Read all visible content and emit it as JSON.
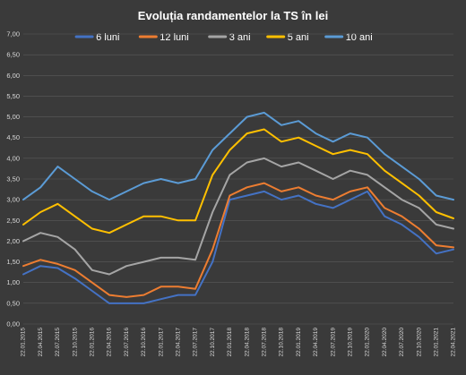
{
  "chart_data": {
    "type": "line",
    "title": "Evoluția randamentelor la TS în lei",
    "xlabel": "",
    "ylabel": "",
    "ylim": [
      0,
      7
    ],
    "yticks": [
      "0,00",
      "0,50",
      "1,00",
      "1,50",
      "2,00",
      "2,50",
      "3,00",
      "3,50",
      "4,00",
      "4,50",
      "5,00",
      "5,50",
      "6,00",
      "6,50",
      "7,00"
    ],
    "legend_position": "top",
    "grid": true,
    "x": [
      "22.01.2015",
      "22.04.2015",
      "22.07.2015",
      "22.10.2015",
      "22.01.2016",
      "22.04.2016",
      "22.07.2016",
      "22.10.2016",
      "22.01.2017",
      "22.04.2017",
      "22.07.2017",
      "22.10.2017",
      "22.01.2018",
      "22.04.2018",
      "22.07.2018",
      "22.10.2018",
      "22.01.2019",
      "22.04.2019",
      "22.07.2019",
      "22.10.2019",
      "22.01.2020",
      "22.04.2020",
      "22.07.2020",
      "22.10.2020",
      "22.01.2021",
      "22.04.2021"
    ],
    "series": [
      {
        "name": "6 luni",
        "color": "#4472c4",
        "values": [
          1.2,
          1.4,
          1.35,
          1.1,
          0.8,
          0.5,
          0.5,
          0.5,
          0.6,
          0.7,
          0.7,
          1.5,
          3.0,
          3.1,
          3.2,
          3.0,
          3.1,
          2.9,
          2.8,
          3.0,
          3.2,
          2.6,
          2.4,
          2.1,
          1.7,
          1.8
        ]
      },
      {
        "name": "12 luni",
        "color": "#ed7d31",
        "values": [
          1.4,
          1.55,
          1.45,
          1.3,
          1.0,
          0.7,
          0.65,
          0.7,
          0.9,
          0.9,
          0.85,
          1.8,
          3.1,
          3.3,
          3.4,
          3.2,
          3.3,
          3.1,
          3.0,
          3.2,
          3.3,
          2.8,
          2.6,
          2.3,
          1.9,
          1.85
        ]
      },
      {
        "name": "3 ani",
        "color": "#a5a5a5",
        "values": [
          2.0,
          2.2,
          2.1,
          1.8,
          1.3,
          1.2,
          1.4,
          1.5,
          1.6,
          1.6,
          1.55,
          2.7,
          3.6,
          3.9,
          4.0,
          3.8,
          3.9,
          3.7,
          3.5,
          3.7,
          3.6,
          3.3,
          3.0,
          2.8,
          2.4,
          2.3
        ]
      },
      {
        "name": "5 ani",
        "color": "#ffc000",
        "values": [
          2.4,
          2.7,
          2.9,
          2.6,
          2.3,
          2.2,
          2.4,
          2.6,
          2.6,
          2.5,
          2.5,
          3.6,
          4.2,
          4.6,
          4.7,
          4.4,
          4.5,
          4.3,
          4.1,
          4.2,
          4.1,
          3.7,
          3.4,
          3.1,
          2.7,
          2.55
        ]
      },
      {
        "name": "10 ani",
        "color": "#5b9bd5",
        "values": [
          3.0,
          3.3,
          3.8,
          3.5,
          3.2,
          3.0,
          3.2,
          3.4,
          3.5,
          3.4,
          3.5,
          4.2,
          4.6,
          5.0,
          5.1,
          4.8,
          4.9,
          4.6,
          4.4,
          4.6,
          4.5,
          4.1,
          3.8,
          3.5,
          3.1,
          3.0
        ]
      }
    ]
  }
}
